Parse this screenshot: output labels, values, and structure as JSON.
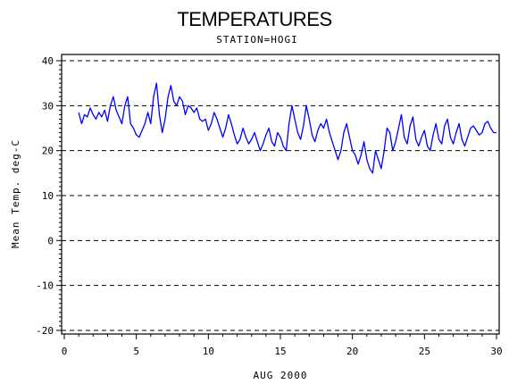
{
  "chart_data": {
    "type": "line",
    "title": "TEMPERATURES",
    "subtitle": "STATION=HOGI",
    "xlabel": "AUG 2000",
    "ylabel": "Mean Temp. deg-C",
    "xlim": [
      0,
      30
    ],
    "ylim": [
      -20,
      40
    ],
    "xticks": [
      0,
      5,
      10,
      15,
      20,
      25,
      30
    ],
    "yticks": [
      -20,
      -10,
      0,
      10,
      20,
      30,
      40
    ],
    "grid": "horizontal dashed",
    "series": [
      {
        "color": "#0000ff",
        "points": [
          [
            1.0,
            28.5
          ],
          [
            1.2,
            26.0
          ],
          [
            1.4,
            28.0
          ],
          [
            1.6,
            27.5
          ],
          [
            1.8,
            29.5
          ],
          [
            2.0,
            28.0
          ],
          [
            2.2,
            27.0
          ],
          [
            2.4,
            28.5
          ],
          [
            2.6,
            27.5
          ],
          [
            2.8,
            29.0
          ],
          [
            3.0,
            26.5
          ],
          [
            3.2,
            30.0
          ],
          [
            3.4,
            32.0
          ],
          [
            3.6,
            29.0
          ],
          [
            3.8,
            27.5
          ],
          [
            4.0,
            26.0
          ],
          [
            4.2,
            30.0
          ],
          [
            4.4,
            32.0
          ],
          [
            4.6,
            26.0
          ],
          [
            4.8,
            25.0
          ],
          [
            5.0,
            23.5
          ],
          [
            5.2,
            23.0
          ],
          [
            5.4,
            24.5
          ],
          [
            5.6,
            26.0
          ],
          [
            5.8,
            28.5
          ],
          [
            6.0,
            26.0
          ],
          [
            6.2,
            32.0
          ],
          [
            6.4,
            35.0
          ],
          [
            6.6,
            28.0
          ],
          [
            6.8,
            24.0
          ],
          [
            7.0,
            27.0
          ],
          [
            7.2,
            32.0
          ],
          [
            7.4,
            34.5
          ],
          [
            7.6,
            31.0
          ],
          [
            7.8,
            30.0
          ],
          [
            8.0,
            32.0
          ],
          [
            8.2,
            31.0
          ],
          [
            8.4,
            28.0
          ],
          [
            8.6,
            30.0
          ],
          [
            8.8,
            29.5
          ],
          [
            9.0,
            28.5
          ],
          [
            9.2,
            29.5
          ],
          [
            9.4,
            27.0
          ],
          [
            9.6,
            26.5
          ],
          [
            9.8,
            27.0
          ],
          [
            10.0,
            24.5
          ],
          [
            10.2,
            26.0
          ],
          [
            10.4,
            28.5
          ],
          [
            10.6,
            27.0
          ],
          [
            10.8,
            25.0
          ],
          [
            11.0,
            23.0
          ],
          [
            11.2,
            25.0
          ],
          [
            11.4,
            28.0
          ],
          [
            11.6,
            26.0
          ],
          [
            11.8,
            23.5
          ],
          [
            12.0,
            21.5
          ],
          [
            12.2,
            22.5
          ],
          [
            12.4,
            25.0
          ],
          [
            12.6,
            23.0
          ],
          [
            12.8,
            21.5
          ],
          [
            13.0,
            22.5
          ],
          [
            13.2,
            24.0
          ],
          [
            13.4,
            22.0
          ],
          [
            13.6,
            20.0
          ],
          [
            13.8,
            21.5
          ],
          [
            14.0,
            23.5
          ],
          [
            14.2,
            25.0
          ],
          [
            14.4,
            22.0
          ],
          [
            14.6,
            21.0
          ],
          [
            14.8,
            24.0
          ],
          [
            15.0,
            23.0
          ],
          [
            15.2,
            21.0
          ],
          [
            15.4,
            20.0
          ],
          [
            15.6,
            26.0
          ],
          [
            15.8,
            30.0
          ],
          [
            16.0,
            27.0
          ],
          [
            16.2,
            24.0
          ],
          [
            16.4,
            22.5
          ],
          [
            16.6,
            25.5
          ],
          [
            16.8,
            30.0
          ],
          [
            17.0,
            27.0
          ],
          [
            17.2,
            23.5
          ],
          [
            17.4,
            22.0
          ],
          [
            17.6,
            24.5
          ],
          [
            17.8,
            26.0
          ],
          [
            18.0,
            25.0
          ],
          [
            18.2,
            27.0
          ],
          [
            18.4,
            24.0
          ],
          [
            18.6,
            22.0
          ],
          [
            18.8,
            20.0
          ],
          [
            19.0,
            18.0
          ],
          [
            19.2,
            20.0
          ],
          [
            19.4,
            24.0
          ],
          [
            19.6,
            26.0
          ],
          [
            19.8,
            23.0
          ],
          [
            20.0,
            20.0
          ],
          [
            20.2,
            19.0
          ],
          [
            20.4,
            17.0
          ],
          [
            20.6,
            19.0
          ],
          [
            20.8,
            22.0
          ],
          [
            21.0,
            18.0
          ],
          [
            21.2,
            16.0
          ],
          [
            21.4,
            15.0
          ],
          [
            21.6,
            20.0
          ],
          [
            21.8,
            18.0
          ],
          [
            22.0,
            16.0
          ],
          [
            22.2,
            20.0
          ],
          [
            22.4,
            25.0
          ],
          [
            22.6,
            24.0
          ],
          [
            22.8,
            20.0
          ],
          [
            23.0,
            22.0
          ],
          [
            23.2,
            25.0
          ],
          [
            23.4,
            28.0
          ],
          [
            23.6,
            23.0
          ],
          [
            23.8,
            21.5
          ],
          [
            24.0,
            25.5
          ],
          [
            24.2,
            27.5
          ],
          [
            24.4,
            22.5
          ],
          [
            24.6,
            21.0
          ],
          [
            24.8,
            23.0
          ],
          [
            25.0,
            24.5
          ],
          [
            25.2,
            21.0
          ],
          [
            25.4,
            20.0
          ],
          [
            25.6,
            23.5
          ],
          [
            25.8,
            26.0
          ],
          [
            26.0,
            22.5
          ],
          [
            26.2,
            21.5
          ],
          [
            26.4,
            25.5
          ],
          [
            26.6,
            27.0
          ],
          [
            26.8,
            23.0
          ],
          [
            27.0,
            21.5
          ],
          [
            27.2,
            24.0
          ],
          [
            27.4,
            26.0
          ],
          [
            27.6,
            22.5
          ],
          [
            27.8,
            21.0
          ],
          [
            28.0,
            23.0
          ],
          [
            28.2,
            25.0
          ],
          [
            28.4,
            25.5
          ],
          [
            28.6,
            24.5
          ],
          [
            28.8,
            23.5
          ],
          [
            29.0,
            24.0
          ],
          [
            29.2,
            26.0
          ],
          [
            29.4,
            26.5
          ],
          [
            29.6,
            25.0
          ],
          [
            29.8,
            24.0
          ],
          [
            30.0,
            24.0
          ]
        ]
      }
    ]
  }
}
